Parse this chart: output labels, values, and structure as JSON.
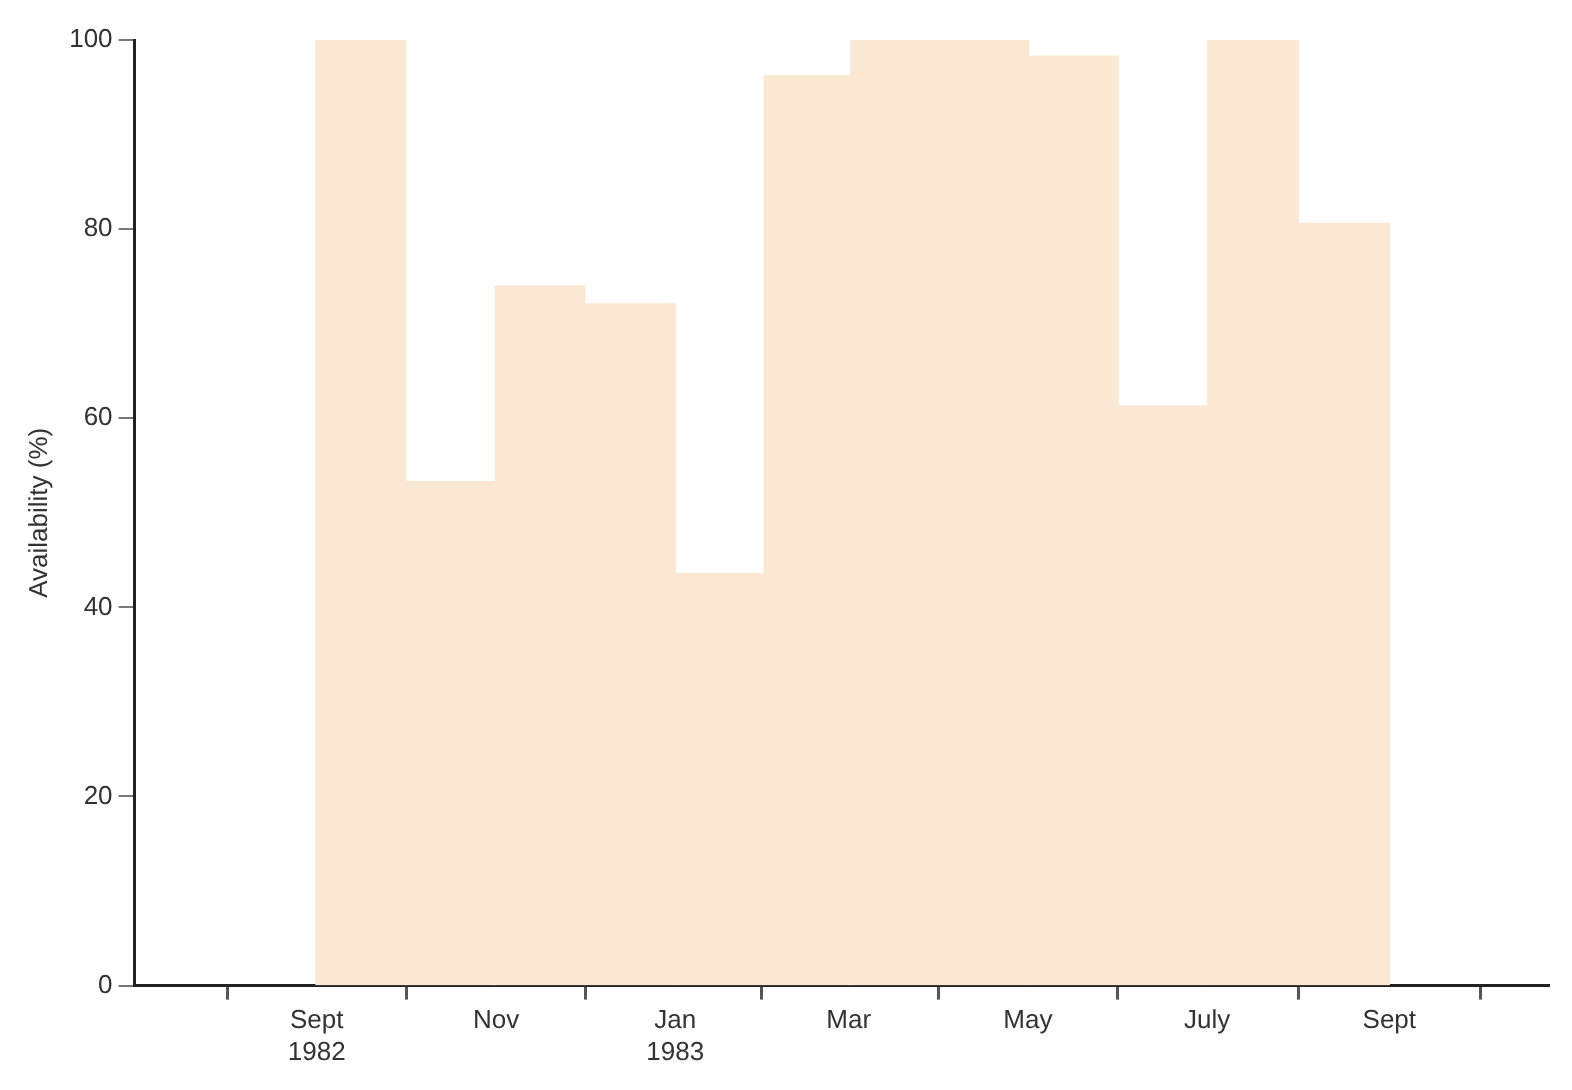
{
  "chart_data": {
    "type": "histogram",
    "ylabel": "Availability (%)",
    "bins": [
      "1982-09",
      "1982-10",
      "1982-11",
      "1982-12",
      "1983-01",
      "1983-02",
      "1983-03",
      "1983-04",
      "1983-05",
      "1983-06",
      "1983-07",
      "1983-08",
      "1983-09"
    ],
    "values": [
      100,
      53.3,
      74,
      72.1,
      43.6,
      96.2,
      100,
      100,
      98.3,
      61.3,
      100,
      80.6
    ],
    "color": "#fbe8d3",
    "xlim": [
      "1982-07",
      "1983-10-25"
    ],
    "xticks": [
      {
        "value": "1982-09",
        "label": "Sept\n1982"
      },
      {
        "value": "1982-11",
        "label": "Nov"
      },
      {
        "value": "1983-01",
        "label": "Jan\n1983"
      },
      {
        "value": "1983-03",
        "label": "Mar"
      },
      {
        "value": "1983-05",
        "label": "May"
      },
      {
        "value": "1983-07",
        "label": "July"
      },
      {
        "value": "1983-09",
        "label": "Sept"
      }
    ],
    "ylim": [
      0,
      100
    ],
    "yticks": [
      0,
      20,
      40,
      60,
      80,
      100
    ],
    "grid": false,
    "legend": false
  }
}
